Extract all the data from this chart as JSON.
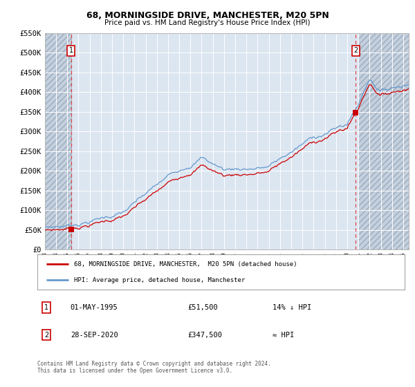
{
  "title": "68, MORNINGSIDE DRIVE, MANCHESTER, M20 5PN",
  "subtitle": "Price paid vs. HM Land Registry's House Price Index (HPI)",
  "legend_line1": "68, MORNINGSIDE DRIVE, MANCHESTER,  M20 5PN (detached house)",
  "legend_line2": "HPI: Average price, detached house, Manchester",
  "footer_line1": "Contains HM Land Registry data © Crown copyright and database right 2024.",
  "footer_line2": "This data is licensed under the Open Government Licence v3.0.",
  "point1_label": "1",
  "point1_date": "01-MAY-1995",
  "point1_price": "£51,500",
  "point1_hpi": "14% ↓ HPI",
  "point2_label": "2",
  "point2_date": "28-SEP-2020",
  "point2_price": "£347,500",
  "point2_hpi": "≈ HPI",
  "point1_x": 1995.33,
  "point1_y": 51500,
  "point2_x": 2020.75,
  "point2_y": 347500,
  "ylim": [
    0,
    550000
  ],
  "xlim": [
    1993.0,
    2025.5
  ],
  "red_color": "#cc0000",
  "blue_color": "#6699cc",
  "background_color": "#dce6f1",
  "hatch_face_color": "#c5d0de",
  "grid_color": "#ffffff",
  "dashed_line_color": "#dd4444",
  "yticks": [
    0,
    50000,
    100000,
    150000,
    200000,
    250000,
    300000,
    350000,
    400000,
    450000,
    500000,
    550000
  ],
  "ytick_labels": [
    "£0",
    "£50K",
    "£100K",
    "£150K",
    "£200K",
    "£250K",
    "£300K",
    "£350K",
    "£400K",
    "£450K",
    "£500K",
    "£550K"
  ],
  "xticks": [
    1993,
    1994,
    1995,
    1996,
    1997,
    1998,
    1999,
    2000,
    2001,
    2002,
    2003,
    2004,
    2005,
    2006,
    2007,
    2008,
    2009,
    2010,
    2011,
    2012,
    2013,
    2014,
    2015,
    2016,
    2017,
    2018,
    2019,
    2020,
    2021,
    2022,
    2023,
    2024,
    2025
  ]
}
